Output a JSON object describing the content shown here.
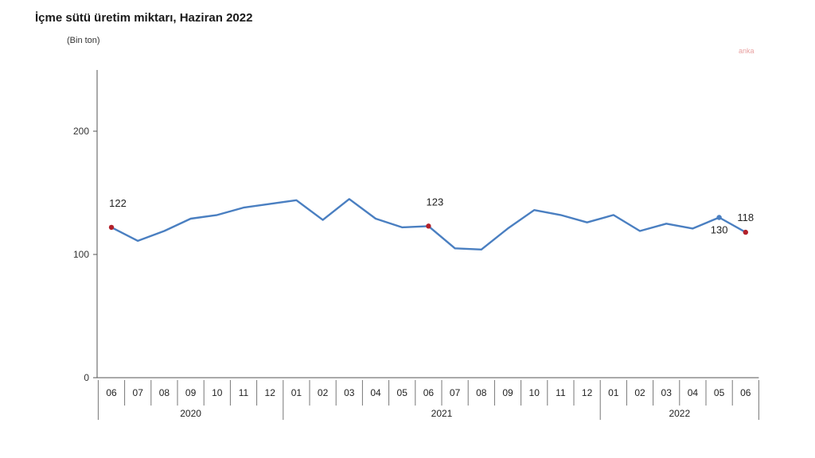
{
  "title": "İçme sütü üretim miktarı, Haziran 2022",
  "unit": "(Bin ton)",
  "watermark": "anka",
  "chart_data": {
    "type": "line",
    "title": "İçme sütü üretim miktarı, Haziran 2022",
    "ylabel": "(Bin ton)",
    "xlabel": "",
    "ylim": [
      0,
      250
    ],
    "yticks": [
      0,
      100,
      200
    ],
    "grid": false,
    "categories": [
      "06",
      "07",
      "08",
      "09",
      "10",
      "11",
      "12",
      "01",
      "02",
      "03",
      "04",
      "05",
      "06",
      "07",
      "08",
      "09",
      "10",
      "11",
      "12",
      "01",
      "02",
      "03",
      "04",
      "05",
      "06"
    ],
    "years": [
      {
        "label": "2020",
        "count": 7
      },
      {
        "label": "2021",
        "count": 12
      },
      {
        "label": "2022",
        "count": 6
      }
    ],
    "series": [
      {
        "color": "#4a7fc1",
        "values": [
          122,
          111,
          119,
          129,
          132,
          138,
          141,
          144,
          128,
          145,
          129,
          122,
          123,
          105,
          104,
          121,
          136,
          132,
          126,
          132,
          119,
          125,
          121,
          130,
          118
        ]
      }
    ],
    "markers": [
      {
        "index": 0,
        "label": "122",
        "color": "#b2202a"
      },
      {
        "index": 12,
        "label": "123",
        "color": "#b2202a"
      },
      {
        "index": 23,
        "label": "130",
        "color": "#4a7fc1"
      },
      {
        "index": 24,
        "label": "118",
        "color": "#b2202a"
      }
    ]
  }
}
